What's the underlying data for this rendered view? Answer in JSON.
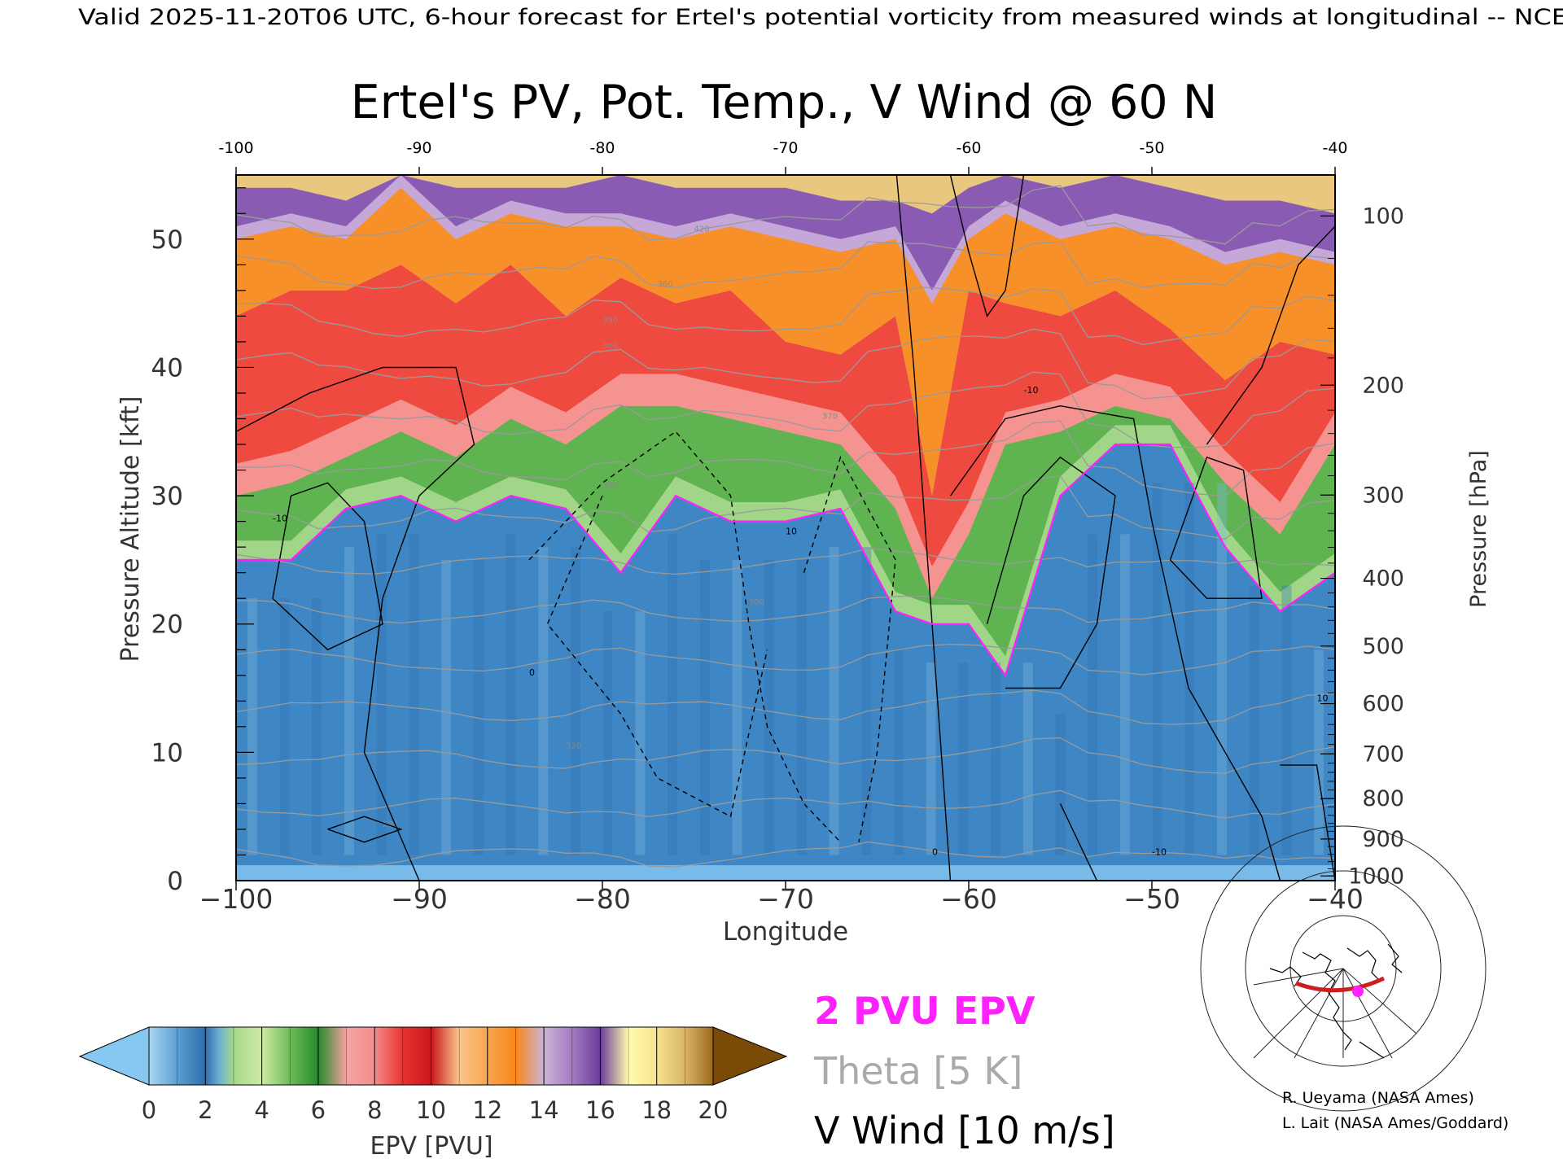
{
  "header": {
    "valid_line": "Valid 2025-11-20T06 UTC, 6-hour forecast for Ertel's potential vorticity from measured winds at longitudinal -- NCE"
  },
  "chart_data": {
    "type": "heatmap",
    "title": "Ertel's PV, Pot. Temp., V Wind @ 60 N",
    "xlabel": "Longitude",
    "ylabel_left": "Pressure Altitude [kft]",
    "ylabel_right": "Pressure [hPa]",
    "xlim": [
      -100,
      -40
    ],
    "ylim_kft": [
      0,
      55
    ],
    "x_ticks": [
      "-100",
      "-90",
      "-80",
      "-70",
      "-60",
      "-50",
      "-40"
    ],
    "x_ticks_bottom": [
      "−100",
      "−90",
      "−80",
      "−70",
      "−60",
      "−50",
      "−40"
    ],
    "y_ticks_kft": [
      "0",
      "10",
      "20",
      "30",
      "40",
      "50"
    ],
    "pressure_ticks": [
      {
        "hpa": 100,
        "label": "100"
      },
      {
        "hpa": 200,
        "label": "200"
      },
      {
        "hpa": 300,
        "label": "300"
      },
      {
        "hpa": 400,
        "label": "400"
      },
      {
        "hpa": 500,
        "label": "500"
      },
      {
        "hpa": 600,
        "label": "600"
      },
      {
        "hpa": 700,
        "label": "700"
      },
      {
        "hpa": 800,
        "label": "800"
      },
      {
        "hpa": 900,
        "label": "900"
      },
      {
        "hpa": 1000,
        "label": "1000"
      }
    ],
    "pv_field": {
      "longitudes": [
        -100,
        -97,
        -94,
        -91,
        -88,
        -85,
        -82,
        -79,
        -76,
        -73,
        -70,
        -67,
        -64,
        -62,
        -60,
        -58,
        -55,
        -52,
        -49,
        -46,
        -43,
        -40
      ],
      "tropopause_2pvu_kft": [
        25,
        25,
        29,
        30,
        28,
        30,
        29,
        24,
        30,
        28,
        28,
        29,
        21,
        20,
        20,
        16,
        30,
        34,
        34,
        26,
        21,
        24
      ],
      "lower_strat_top_kft": [
        30,
        31,
        33,
        35,
        33,
        36,
        34,
        37,
        37,
        36,
        35,
        34,
        29,
        22,
        27,
        34,
        35,
        37,
        36,
        31,
        27,
        34
      ],
      "red_layer_top_kft": [
        44,
        46,
        46,
        48,
        45,
        48,
        44,
        47,
        45,
        46,
        42,
        41,
        44,
        30,
        46,
        45,
        44,
        46,
        43,
        39,
        42,
        41
      ],
      "orange_layer_top_kft": [
        50,
        51,
        50,
        54,
        50,
        52,
        51,
        51,
        50,
        51,
        50,
        49,
        50,
        45,
        50,
        52,
        50,
        51,
        50,
        48,
        49,
        48
      ],
      "purple_layer_top_kft": [
        54,
        54,
        53,
        55,
        54,
        54,
        54,
        55,
        54,
        54,
        54,
        53,
        53,
        52,
        54,
        55,
        54,
        55,
        54,
        53,
        53,
        52
      ]
    },
    "theta_contours_K": [
      290,
      300,
      310,
      320,
      330,
      340,
      350,
      360,
      370,
      380,
      390,
      400,
      410,
      420
    ],
    "theta_contour_labels": [
      "290",
      "300",
      "320",
      "340",
      "360",
      "370",
      "380",
      "390",
      "420"
    ],
    "v_wind_contours_ms": [
      -10,
      0,
      10
    ],
    "v_wind_labels": [
      "-10",
      "0",
      "10"
    ],
    "colorbar": {
      "label": "EPV [PVU]",
      "ticks": [
        "0",
        "2",
        "4",
        "6",
        "8",
        "10",
        "12",
        "14",
        "16",
        "18",
        "20"
      ],
      "under_color": "#87c8f2",
      "over_color": "#7a4a06",
      "stops": [
        {
          "pv": 0,
          "color": "#a8d6ef"
        },
        {
          "pv": 1,
          "color": "#5d9fd2"
        },
        {
          "pv": 2,
          "color": "#2b6fae"
        },
        {
          "pv": 2.5,
          "color": "#6fb0d6"
        },
        {
          "pv": 3,
          "color": "#a6d98a"
        },
        {
          "pv": 4,
          "color": "#cfe9a5"
        },
        {
          "pv": 5,
          "color": "#6cbd57"
        },
        {
          "pv": 6,
          "color": "#238b2a"
        },
        {
          "pv": 7,
          "color": "#f5a3a3"
        },
        {
          "pv": 8,
          "color": "#f48d8d"
        },
        {
          "pv": 9,
          "color": "#e8322e"
        },
        {
          "pv": 10,
          "color": "#c9161c"
        },
        {
          "pv": 11,
          "color": "#fbc68c"
        },
        {
          "pv": 12,
          "color": "#f8a550"
        },
        {
          "pv": 13,
          "color": "#f8861a"
        },
        {
          "pv": 14,
          "color": "#cbb4d8"
        },
        {
          "pv": 15,
          "color": "#a27cc1"
        },
        {
          "pv": 16,
          "color": "#6a3d99"
        },
        {
          "pv": 17,
          "color": "#fffcb0"
        },
        {
          "pv": 18,
          "color": "#f7e38d"
        },
        {
          "pv": 19,
          "color": "#d9b46a"
        },
        {
          "pv": 20,
          "color": "#9c6a1c"
        }
      ]
    },
    "legend": {
      "epv_label": "2 PVU EPV",
      "epv_color": "#ff22ff",
      "theta_label": "Theta [5 K]",
      "theta_color": "#aaaaaa",
      "wind_label": "V Wind [10 m/s]",
      "wind_color": "#000000"
    },
    "credits": [
      "R. Ueyama (NASA Ames)",
      "L. Lait (NASA Ames/Goddard)"
    ]
  }
}
